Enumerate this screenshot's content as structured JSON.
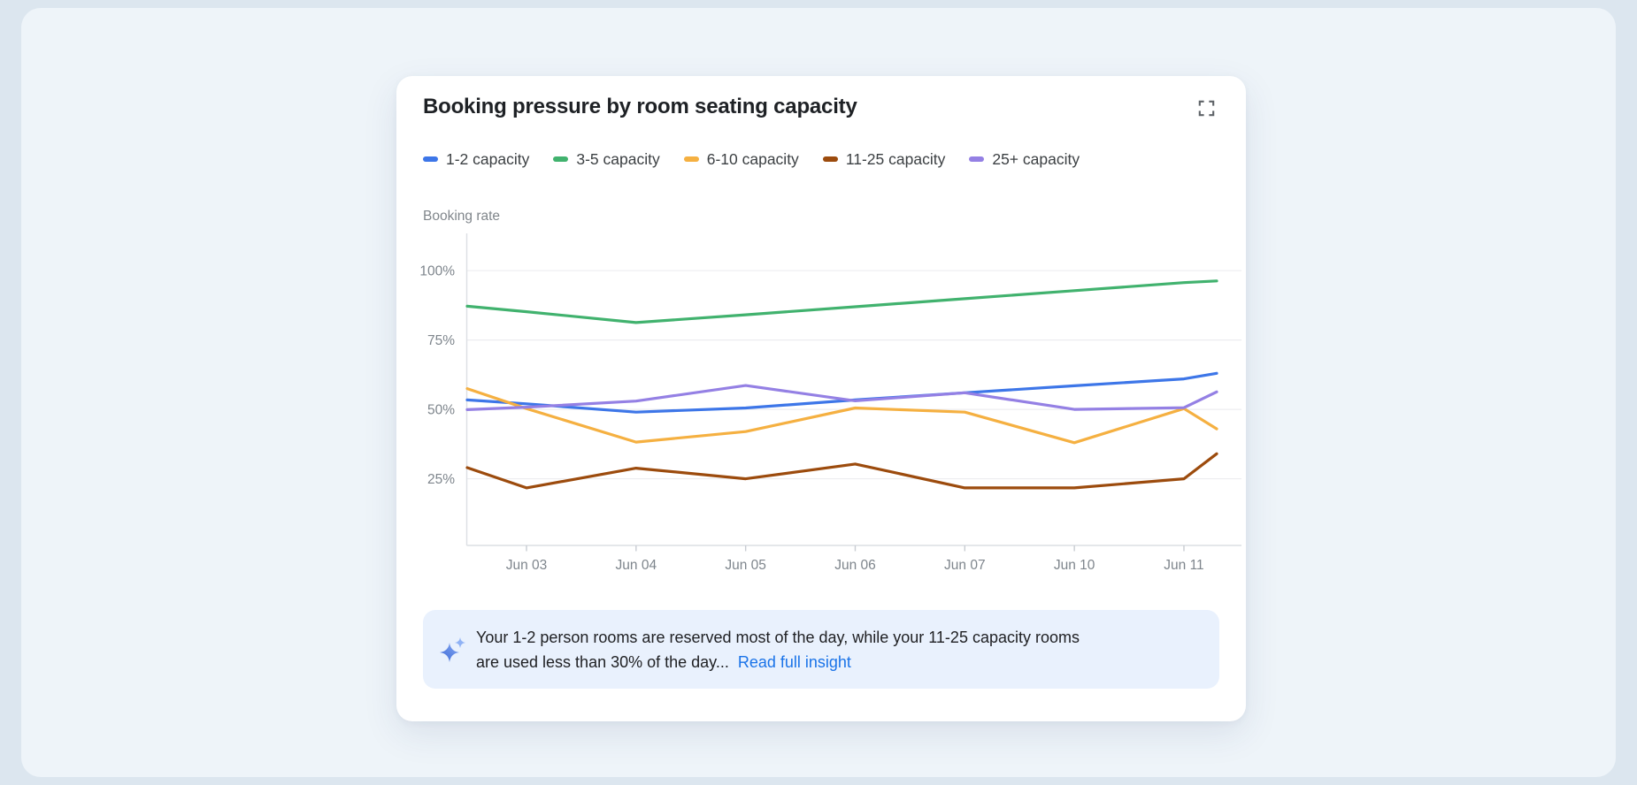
{
  "page": {
    "background": "#dce6ef",
    "panel_background": "#eef4f9"
  },
  "card": {
    "title": "Booking pressure by room seating capacity",
    "expand_icon": "fullscreen-expand",
    "insight": {
      "icon": "ai-sparkle",
      "line1": "Your 1-2 person rooms are reserved most of the day, while your 11-25 capacity rooms",
      "line2": "are used less than 30% of the day...",
      "link_label": "Read full insight",
      "background": "#e9f1fd",
      "link_color": "#1a73e8"
    }
  },
  "chart_data": {
    "type": "line",
    "title": "Booking pressure by room seating capacity",
    "y_axis_label": "Booking rate",
    "y_ticks": [
      {
        "label": "100%",
        "value": 100
      },
      {
        "label": "75%",
        "value": 75
      },
      {
        "label": "50%",
        "value": 50
      },
      {
        "label": "25%",
        "value": 25
      }
    ],
    "ylim": [
      0,
      112
    ],
    "grid": true,
    "legend_position": "top",
    "x_categories": [
      "Jun 03",
      "Jun 04",
      "Jun 05",
      "Jun 06",
      "Jun 07",
      "Jun 10",
      "Jun 11"
    ],
    "x_note": "lines are clipped at the plot edges; edge_start / edge_end are the booking-rate values where each line meets the left / right plot boundary (half a category outside Jun 03 and Jun 11)",
    "series": [
      {
        "name": "1-2 capacity",
        "color": "#3d76e8",
        "edge_start": 53.4,
        "values": [
          52,
          49,
          50.5,
          53.4,
          56,
          58.5,
          61
        ],
        "edge_end": 63
      },
      {
        "name": "3-5 capacity",
        "color": "#41b26e",
        "edge_start": 87.2,
        "values": [
          85.2,
          81.3,
          84.1,
          87,
          89.9,
          92.8,
          95.7
        ],
        "edge_end": 96.3
      },
      {
        "name": "6-10 capacity",
        "color": "#f5b041",
        "edge_start": 57.5,
        "values": [
          50.3,
          38.2,
          42,
          50.5,
          49,
          38,
          50.3
        ],
        "edge_end": 43
      },
      {
        "name": "11-25 capacity",
        "color": "#9c4b0d",
        "edge_start": 29,
        "values": [
          21.7,
          28.8,
          25,
          30.3,
          21.7,
          21.7,
          25
        ],
        "edge_end": 34
      },
      {
        "name": "25+ capacity",
        "color": "#9480e4",
        "edge_start": 49.9,
        "values": [
          50.8,
          53,
          58.6,
          53.1,
          56,
          50,
          50.6
        ],
        "edge_end": 56.3
      }
    ]
  }
}
